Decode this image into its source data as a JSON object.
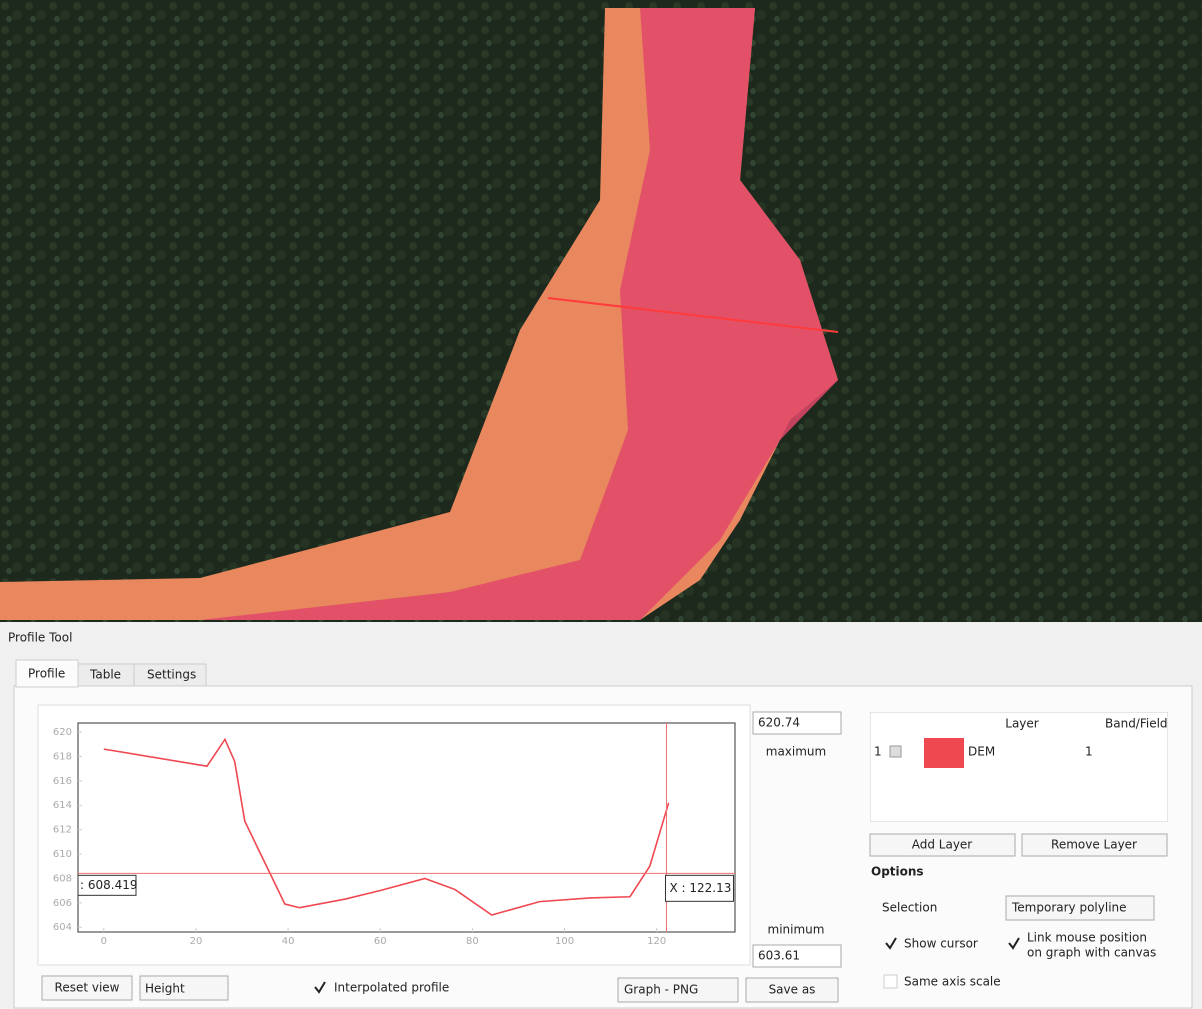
{
  "window_title": "Profile Tool",
  "tabs": [
    "Profile",
    "Table",
    "Settings"
  ],
  "chart_data": {
    "type": "line",
    "x": [
      0,
      22.4,
      26.3,
      28.4,
      30.6,
      34.3,
      39.3,
      42.5,
      52.3,
      59.9,
      69.7,
      76.2,
      84.2,
      94.6,
      105.5,
      114.2,
      118.5,
      122.6
    ],
    "series": [
      {
        "name": "DEM",
        "color": "#f04850",
        "values": [
          618.6,
          617.2,
          619.4,
          617.6,
          612.7,
          609.8,
          605.9,
          605.6,
          606.3,
          607.0,
          608.0,
          607.1,
          605.0,
          606.1,
          606.4,
          606.5,
          609.0,
          614.2
        ]
      }
    ],
    "xlim": [
      -5.6,
      137
    ],
    "ylim": [
      603.61,
      620.74
    ],
    "xticks": [
      0,
      20,
      40,
      60,
      80,
      100,
      120
    ],
    "yticks": [
      604,
      606,
      608,
      610,
      612,
      614,
      616,
      618,
      620
    ],
    "cursor": {
      "x": 122.13,
      "x_label": "X : 122.13",
      "y": 608.419,
      "y_label": ": 608.419"
    },
    "max_label": "maximum",
    "min_label": "minimum"
  },
  "layers": {
    "headers": [
      "Layer",
      "Band/Field"
    ],
    "rows": [
      {
        "index": "1",
        "band": "1"
      }
    ],
    "add_button": "Add Layer",
    "remove_button": "Remove Layer"
  },
  "options": {
    "title": "Options",
    "selection_label": "Selection",
    "selection_value": "Temporary polyline",
    "show_cursor": "Show cursor",
    "link_mouse": [
      "Link mouse position",
      "on graph with canvas"
    ],
    "same_axis_scale": "Same axis scale"
  },
  "bottom_bar": {
    "reset_view": "Reset view",
    "mode": "Height",
    "interpolated": "Interpolated profile",
    "export_format": "Graph - PNG",
    "save_as": "Save as"
  }
}
